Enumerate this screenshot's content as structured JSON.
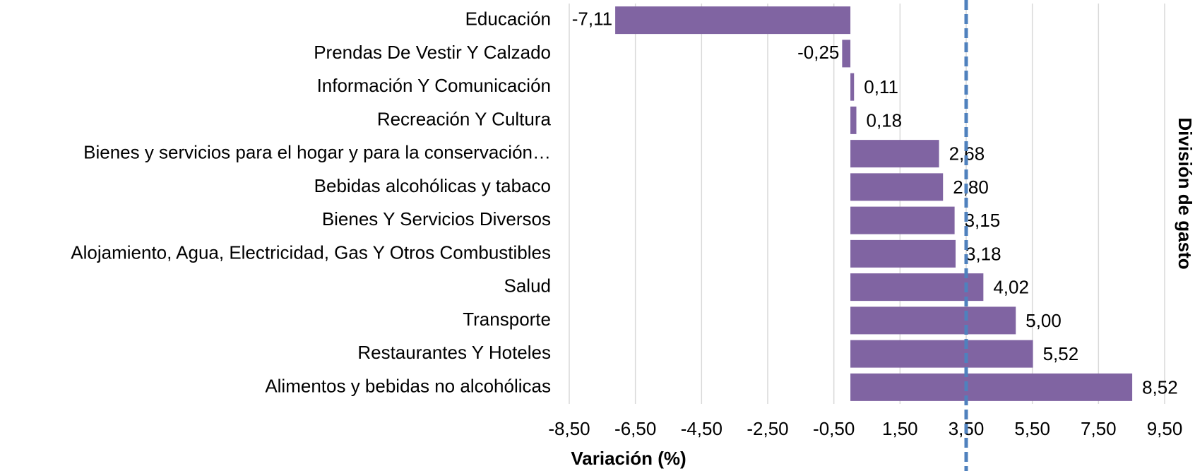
{
  "chart_data": {
    "type": "barh",
    "categories": [
      "Educación",
      "Prendas De Vestir Y Calzado",
      "Información Y Comunicación",
      "Recreación Y Cultura",
      "Bienes y servicios para el hogar y para la conservación…",
      "Bebidas alcohólicas y tabaco",
      "Bienes Y Servicios Diversos",
      "Alojamiento, Agua, Electricidad, Gas Y Otros Combustibles",
      "Salud",
      "Transporte",
      "Restaurantes Y Hoteles",
      "Alimentos y bebidas no alcohólicas"
    ],
    "values": [
      -7.11,
      -0.25,
      0.11,
      0.18,
      2.68,
      2.8,
      3.15,
      3.18,
      4.02,
      5.0,
      5.52,
      8.52
    ],
    "value_labels": [
      "-7,11",
      "-0,25",
      "0,11",
      "0,18",
      "2,68",
      "2,80",
      "3,15",
      "3,18",
      "4,02",
      "5,00",
      "5,52",
      "8,52"
    ],
    "color": "#8064a2",
    "xlim": [
      -8.5,
      9.5
    ],
    "xticks": [
      {
        "value": -8.5,
        "label": "-8,50"
      },
      {
        "value": -6.5,
        "label": "-6,50"
      },
      {
        "value": -4.5,
        "label": "-4,50"
      },
      {
        "value": -2.5,
        "label": "-2,50"
      },
      {
        "value": -0.5,
        "label": "-0,50"
      },
      {
        "value": 1.5,
        "label": "1,50"
      },
      {
        "value": 3.5,
        "label": "3,50"
      },
      {
        "value": 5.5,
        "label": "5,50"
      },
      {
        "value": 7.5,
        "label": "7,50"
      },
      {
        "value": 9.5,
        "label": "9,50"
      }
    ],
    "grid": true,
    "xlabel": "Variación (%)",
    "ylabel": "División de gasto",
    "reference_line": {
      "value": 3.5,
      "color": "#4f81bd"
    }
  }
}
